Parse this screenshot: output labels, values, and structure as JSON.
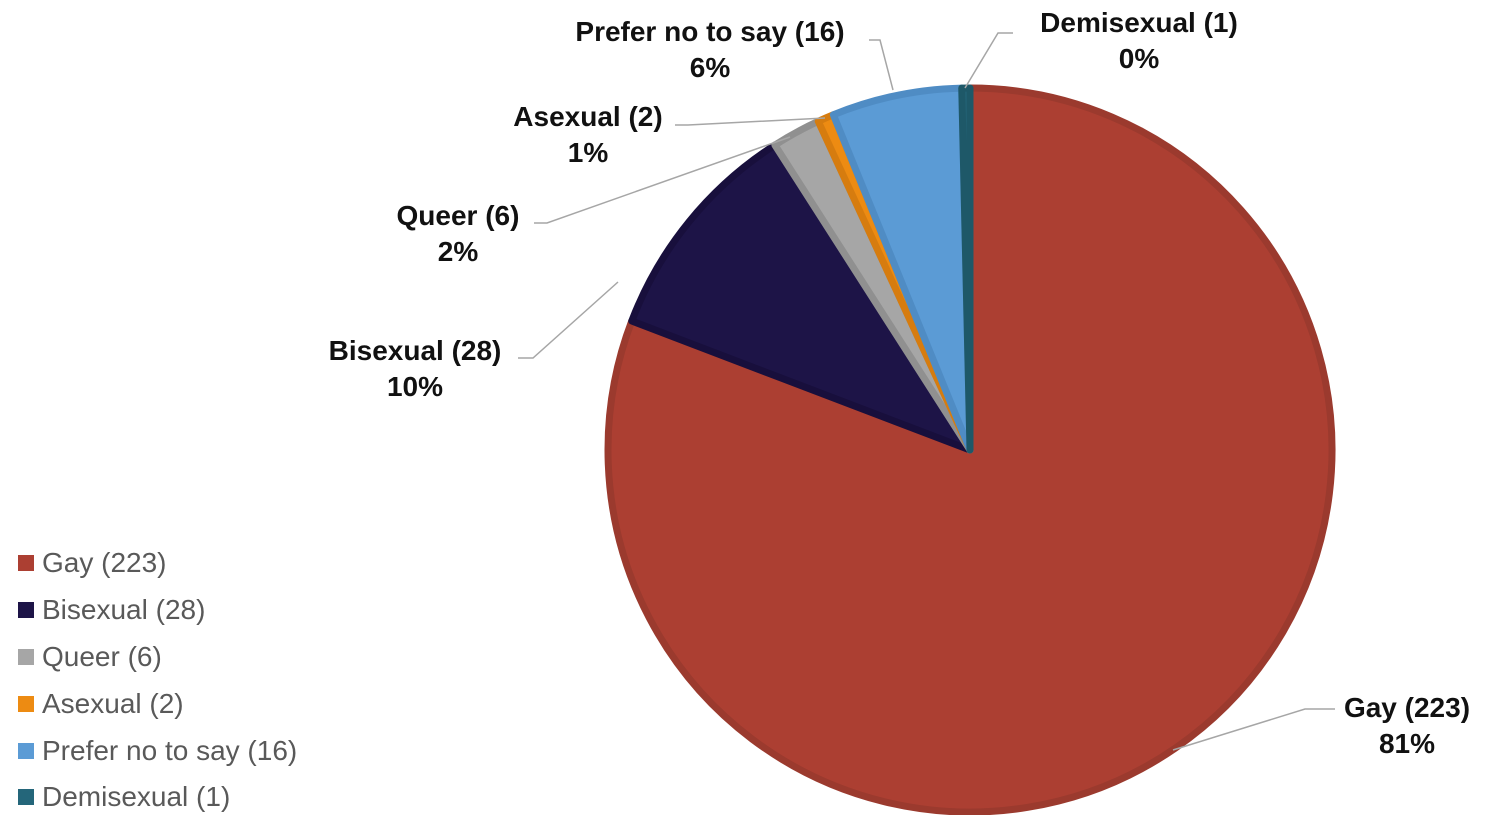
{
  "chart_data": {
    "type": "pie",
    "start": "12 o'clock, clockwise",
    "slices": [
      {
        "label": "Gay (223)",
        "value": 223,
        "percent": "81%",
        "color": "#ac3f32",
        "edge": "#9b3a2e",
        "label_pos": "bottom-right"
      },
      {
        "label": "Bisexual (28)",
        "value": 28,
        "percent": "10%",
        "color": "#1d1447",
        "edge": "#180f3c",
        "label_pos": "left"
      },
      {
        "label": "Queer (6)",
        "value": 6,
        "percent": "2%",
        "color": "#a6a6a6",
        "edge": "#909090",
        "label_pos": "upper-left"
      },
      {
        "label": "Asexual (2)",
        "value": 2,
        "percent": "1%",
        "color": "#ed8b12",
        "edge": "#d67c0f",
        "label_pos": "upper-left"
      },
      {
        "label": "Prefer no to say (16)",
        "value": 16,
        "percent": "6%",
        "color": "#5b9bd5",
        "edge": "#4f8cc4",
        "label_pos": "top"
      },
      {
        "label": "Demisexual (1)",
        "value": 1,
        "percent": "0%",
        "color": "#24667a",
        "edge": "#1e5868",
        "label_pos": "top-right"
      }
    ],
    "legend": {
      "placement": "bottom-left"
    },
    "label_style": {
      "text_color": "#111111",
      "leader_color": "#a6a6a6"
    },
    "legend_text_color": "#595959"
  }
}
